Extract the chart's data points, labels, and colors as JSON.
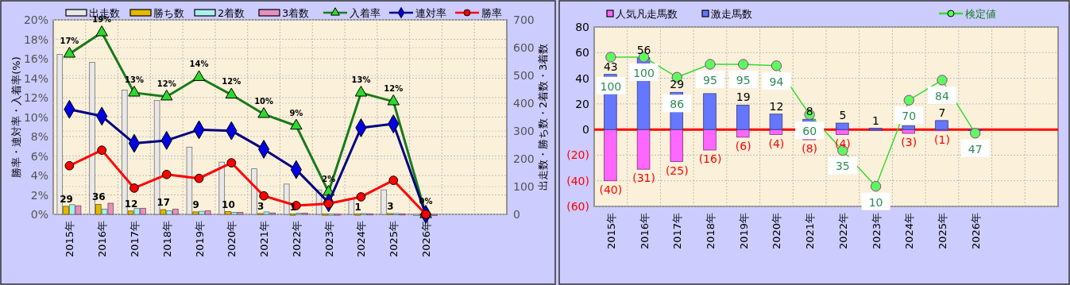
{
  "chart_data": [
    {
      "type": "bar",
      "categories": [
        "2015年",
        "2016年",
        "2017年",
        "2018年",
        "2019年",
        "2020年",
        "2021年",
        "2022年",
        "2023年",
        "2024年",
        "2025年",
        "2026年",
        null,
        null
      ],
      "series": [
        {
          "name": "出走数",
          "type": "bar",
          "axis": "y2",
          "color": "#e8e8e8",
          "values": [
            576,
            547,
            447,
            410,
            242,
            188,
            164,
            109,
            88,
            57,
            88,
            0,
            null,
            null
          ]
        },
        {
          "name": "勝ち数",
          "type": "bar",
          "axis": "y2",
          "color": "#e6b800",
          "values": [
            29,
            36,
            12,
            17,
            9,
            10,
            3,
            1,
            1,
            1,
            3,
            0,
            null,
            null
          ],
          "value_labels": [
            "29",
            "36",
            "12",
            "17",
            "9",
            "10",
            "3",
            "1",
            null,
            "1",
            "3",
            null,
            null,
            null
          ]
        },
        {
          "name": "2着数",
          "type": "bar",
          "axis": "y2",
          "color": "#aaf0f0",
          "values": [
            35,
            19,
            21,
            13,
            11,
            7,
            9,
            4,
            1,
            3,
            3,
            0,
            null,
            null
          ]
        },
        {
          "name": "3着数",
          "type": "bar",
          "axis": "y2",
          "color": "#e890c0",
          "values": [
            31,
            40,
            22,
            19,
            13,
            7,
            5,
            4,
            1,
            2,
            2,
            0,
            null,
            null
          ]
        },
        {
          "name": "入着率",
          "type": "line",
          "color": "#1a7a1a",
          "marker": "triangle",
          "values": [
            16.5,
            18.7,
            12.5,
            12.1,
            14.1,
            12.3,
            10.3,
            9.1,
            2.3,
            12.5,
            11.6,
            0,
            null,
            null
          ],
          "value_labels": [
            "17%",
            "19%",
            "13%",
            "12%",
            "14%",
            "12%",
            "10%",
            "9%",
            "2%",
            "13%",
            "12%",
            "0%",
            null,
            null
          ]
        },
        {
          "name": "連対率",
          "type": "line",
          "color": "#000080",
          "marker": "diamond",
          "values": [
            10.8,
            10.1,
            7.3,
            7.6,
            8.7,
            8.6,
            6.7,
            4.6,
            1.2,
            8.9,
            9.3,
            0,
            null,
            null
          ]
        },
        {
          "name": "勝率",
          "type": "line",
          "color": "#ff0000",
          "marker": "circle",
          "values": [
            5.0,
            6.6,
            2.7,
            4.1,
            3.7,
            5.3,
            1.9,
            0.9,
            1.1,
            1.8,
            3.5,
            0,
            null,
            null
          ]
        }
      ],
      "ylabel": "勝率・連対率・入着率(%)",
      "y2label": "出走数・勝ち数・2着数・3着数",
      "ylim": [
        0,
        20
      ],
      "yticks": [
        {
          "value": 0,
          "label": "0%"
        },
        {
          "value": 2,
          "label": "2%"
        },
        {
          "value": 4,
          "label": "4%"
        },
        {
          "value": 6,
          "label": "6%"
        },
        {
          "value": 8,
          "label": "8%"
        },
        {
          "value": 10,
          "label": "10%"
        },
        {
          "value": 12,
          "label": "12%"
        },
        {
          "value": 14,
          "label": "14%"
        },
        {
          "value": 16,
          "label": "16%"
        },
        {
          "value": 18,
          "label": "18%"
        },
        {
          "value": 20,
          "label": "20%"
        }
      ],
      "y2lim": [
        0,
        700
      ],
      "y2ticks": [
        0,
        100,
        200,
        300,
        400,
        500,
        600,
        700
      ],
      "grid": true,
      "legend": "top",
      "stacked": false
    },
    {
      "type": "bar",
      "categories": [
        "2015年",
        "2016年",
        "2017年",
        "2018年",
        "2019年",
        "2020年",
        "2021年",
        "2022年",
        "2023年",
        "2024年",
        "2025年",
        "2026年",
        null,
        null
      ],
      "series": [
        {
          "name": "人気凡走馬数",
          "type": "bar",
          "color": "#ff66ff",
          "values": [
            -40,
            -31,
            -25,
            -16,
            -6,
            -4,
            -8,
            -4,
            0,
            -3,
            -1,
            0,
            null,
            null
          ],
          "value_labels": [
            "(40)",
            "(31)",
            "(25)",
            "(16)",
            "(6)",
            "(4)",
            "(8)",
            "(4)",
            null,
            "(3)",
            "(1)",
            null,
            null,
            null
          ]
        },
        {
          "name": "激走馬数",
          "type": "bar",
          "color": "#6677ff",
          "values": [
            43,
            56,
            29,
            28,
            19,
            12,
            8,
            5,
            1,
            3,
            7,
            0,
            null,
            null
          ],
          "value_labels": [
            "43",
            "56",
            "29",
            null,
            "19",
            "12",
            "8",
            "5",
            "1",
            null,
            "7",
            null,
            null,
            null
          ]
        },
        {
          "name": "検定値",
          "type": "line",
          "axis": "y2",
          "color": "#33dd33",
          "marker": "circle",
          "values": [
            100,
            100,
            86,
            95,
            95,
            94,
            60,
            35,
            10,
            70,
            84,
            47,
            null,
            null
          ],
          "value_labels": [
            "100",
            "100",
            "86",
            "95",
            "95",
            "94",
            "60",
            "35",
            "10",
            "70",
            "84",
            "47",
            null,
            null
          ]
        }
      ],
      "ylim": [
        -60,
        80
      ],
      "yticks": [
        {
          "value": -60,
          "label": "(60)"
        },
        {
          "value": -40,
          "label": "(40)"
        },
        {
          "value": -20,
          "label": "(20)"
        },
        0,
        20,
        40,
        60,
        80
      ],
      "y2lim": [
        -4,
        121
      ],
      "ref_lines": [
        {
          "axis": "y",
          "value": 0,
          "color": "#ff0000"
        }
      ],
      "grid": true,
      "legend": "top",
      "stacked": true
    }
  ]
}
